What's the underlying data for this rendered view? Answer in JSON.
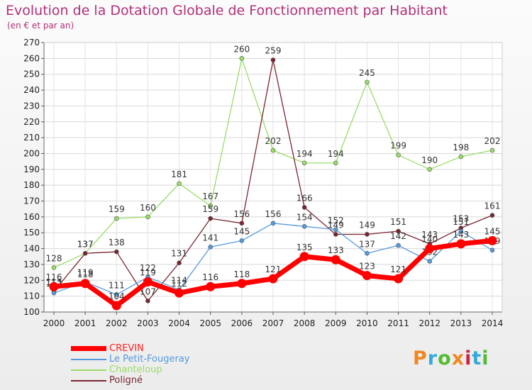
{
  "chart_data": {
    "type": "line",
    "title": "Evolution de la Dotation Globale de Fonctionnement par Habitant",
    "subtitle": "(en € et par an)",
    "x": [
      2000,
      2001,
      2002,
      2003,
      2004,
      2005,
      2006,
      2007,
      2008,
      2009,
      2010,
      2011,
      2012,
      2013,
      2014
    ],
    "ylim": [
      100,
      270
    ],
    "yticks": [
      100,
      110,
      120,
      130,
      140,
      150,
      160,
      170,
      180,
      190,
      200,
      210,
      220,
      230,
      240,
      250,
      260,
      270
    ],
    "grid": true,
    "legend_position": "bottom-left",
    "series": [
      {
        "name": "Chanteloup",
        "color": "#99dd66",
        "values": [
          128,
          137,
          159,
          160,
          181,
          167,
          260,
          202,
          194,
          194,
          245,
          199,
          190,
          198,
          202
        ]
      },
      {
        "name": "Poligné",
        "color": "#7a2630",
        "values": [
          113,
          137,
          138,
          107,
          131,
          159,
          156,
          259,
          166,
          149,
          149,
          151,
          143,
          153,
          161
        ]
      },
      {
        "name": "Le Petit-Fougeray",
        "color": "#5599dd",
        "values": [
          112,
          119,
          111,
          122,
          114,
          141,
          145,
          156,
          154,
          152,
          137,
          142,
          132,
          151,
          139
        ]
      },
      {
        "name": "CREVIN",
        "color": "#ff0000",
        "values": [
          116,
          118,
          104,
          119,
          112,
          116,
          118,
          121,
          135,
          133,
          123,
          121,
          140,
          143,
          145
        ]
      }
    ],
    "legend_order": [
      "CREVIN",
      "Le Petit-Fougeray",
      "Chanteloup",
      "Poligné"
    ]
  },
  "logo": {
    "text": "Proxiti",
    "colors": [
      "#ee8822",
      "#33aadd",
      "#55bb33",
      "#ee8822",
      "#cc2244",
      "#33aadd",
      "#55bb33"
    ]
  }
}
